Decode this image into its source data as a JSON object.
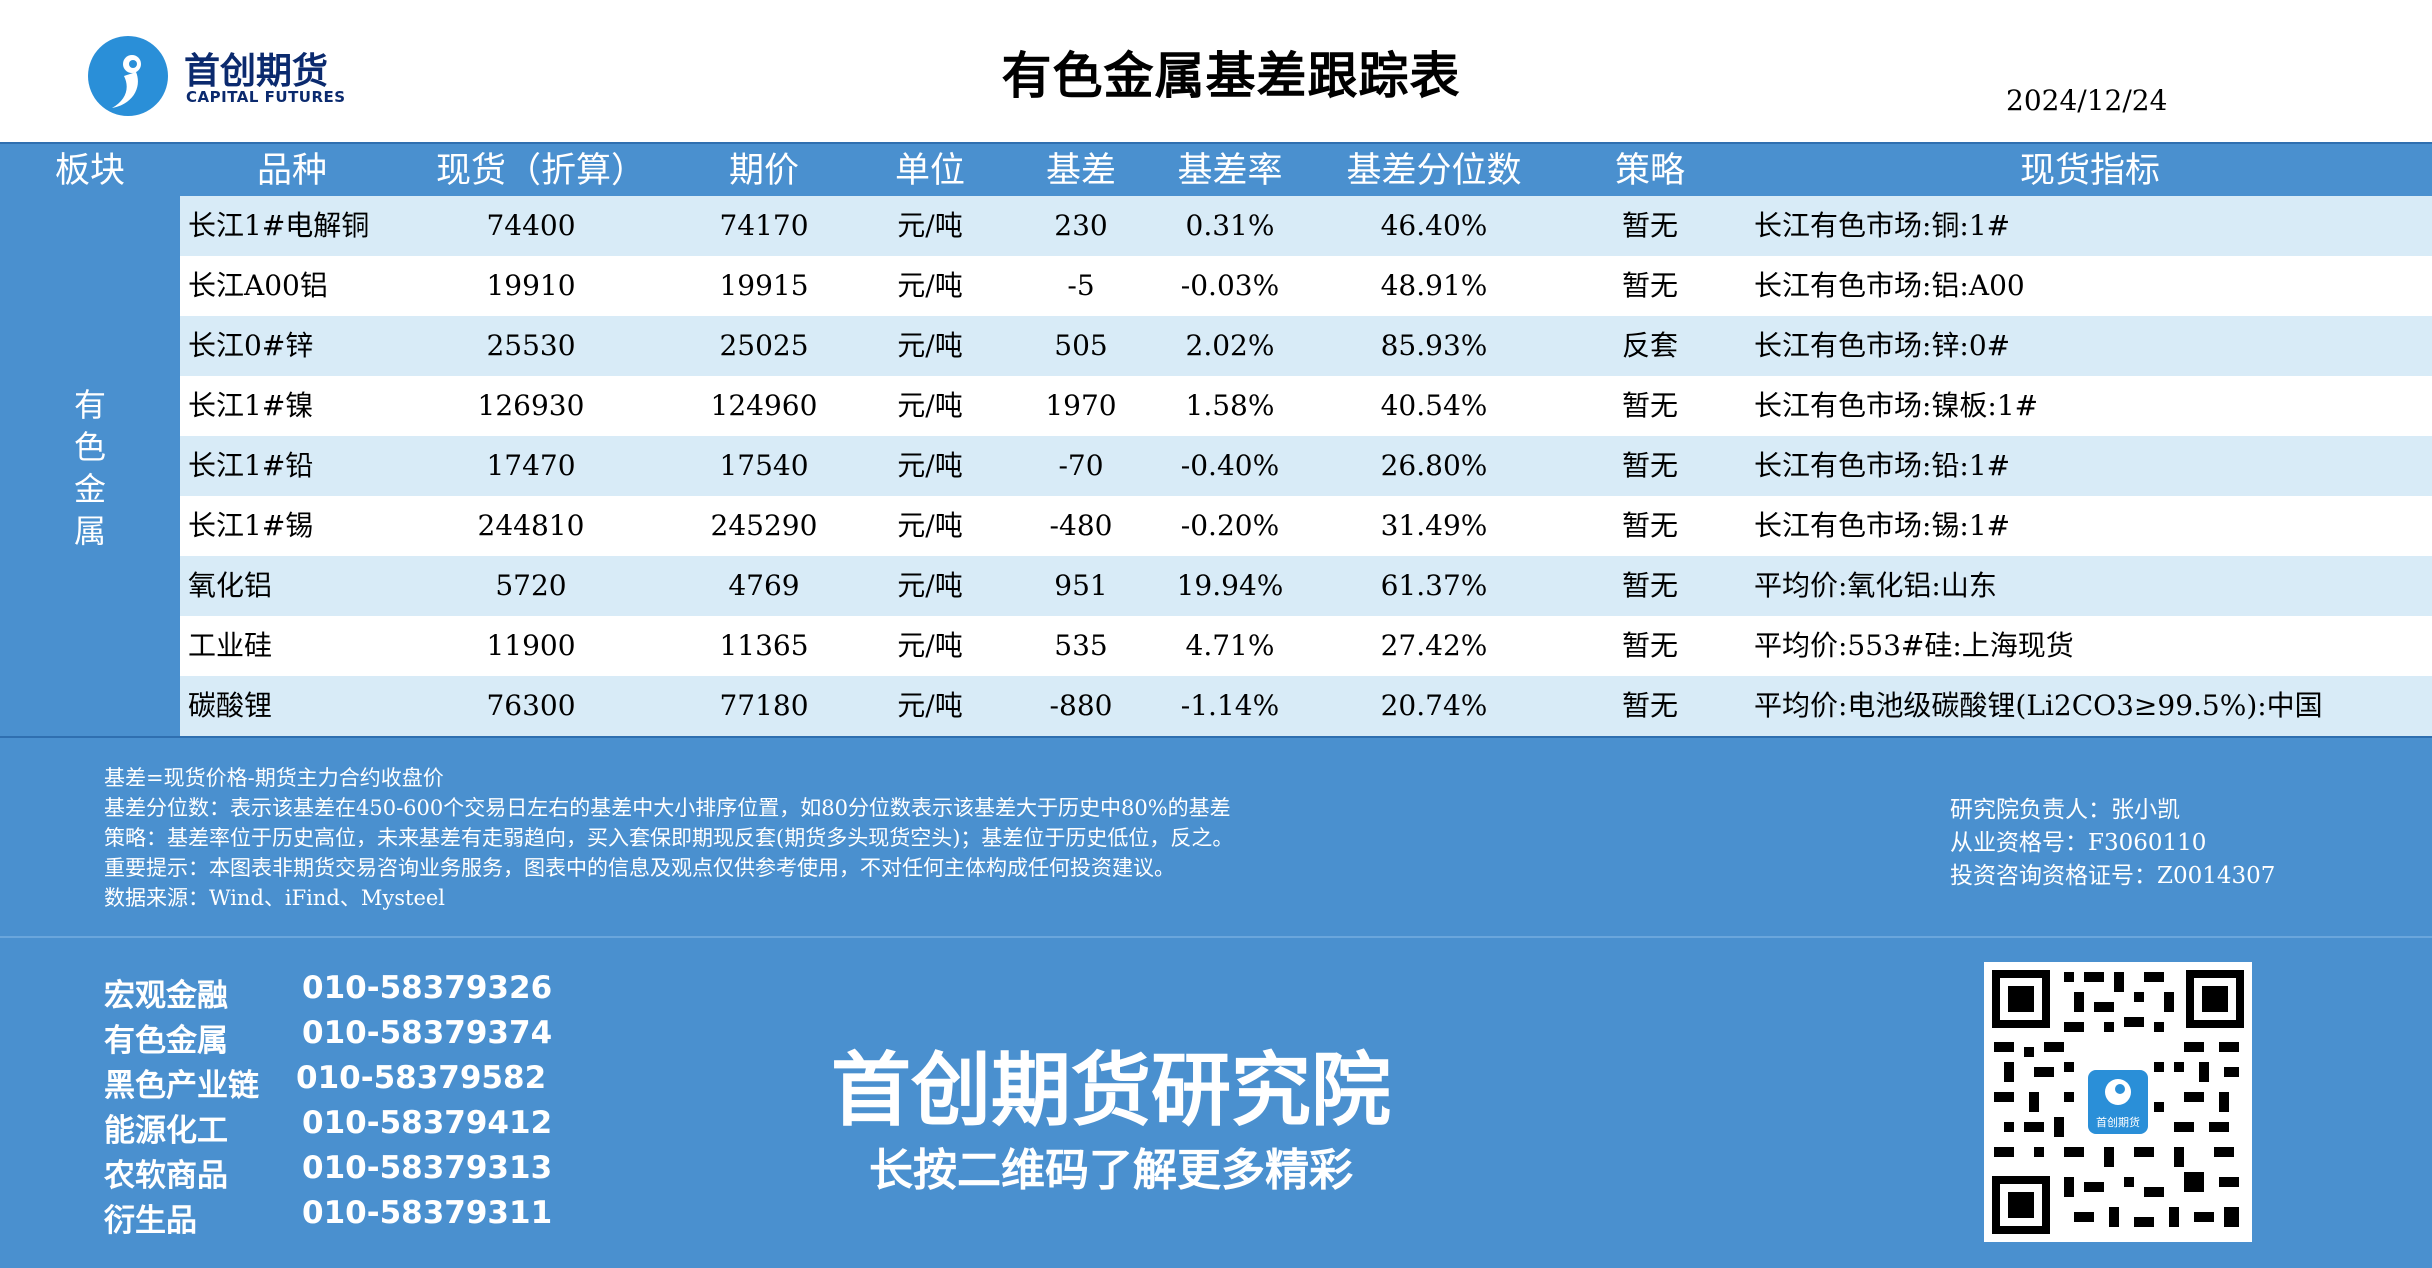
{
  "header": {
    "logo_cn": "首创期货",
    "logo_en": "CAPITAL FUTURES",
    "title": "有色金属基差跟踪表",
    "date": "2024/12/24"
  },
  "table": {
    "headers": [
      "板块",
      "品种",
      "现货（折算）",
      "期价",
      "单位",
      "基差",
      "基差率",
      "基差分位数",
      "策略",
      "现货指标"
    ],
    "section_label": "有\n色\n金\n属",
    "rows": [
      {
        "name": "长江1#电解铜",
        "spot": "74400",
        "futures": "74170",
        "unit": "元/吨",
        "basis": "230",
        "basis_rate": "0.31%",
        "percentile": "46.40%",
        "strategy": "暂无",
        "indicator": "长江有色市场:铜:1#"
      },
      {
        "name": "长江A00铝",
        "spot": "19910",
        "futures": "19915",
        "unit": "元/吨",
        "basis": "-5",
        "basis_rate": "-0.03%",
        "percentile": "48.91%",
        "strategy": "暂无",
        "indicator": "长江有色市场:铝:A00"
      },
      {
        "name": "长江0#锌",
        "spot": "25530",
        "futures": "25025",
        "unit": "元/吨",
        "basis": "505",
        "basis_rate": "2.02%",
        "percentile": "85.93%",
        "strategy": "反套",
        "indicator": "长江有色市场:锌:0#"
      },
      {
        "name": "长江1#镍",
        "spot": "126930",
        "futures": "124960",
        "unit": "元/吨",
        "basis": "1970",
        "basis_rate": "1.58%",
        "percentile": "40.54%",
        "strategy": "暂无",
        "indicator": "长江有色市场:镍板:1#"
      },
      {
        "name": "长江1#铅",
        "spot": "17470",
        "futures": "17540",
        "unit": "元/吨",
        "basis": "-70",
        "basis_rate": "-0.40%",
        "percentile": "26.80%",
        "strategy": "暂无",
        "indicator": "长江有色市场:铅:1#"
      },
      {
        "name": "长江1#锡",
        "spot": "244810",
        "futures": "245290",
        "unit": "元/吨",
        "basis": "-480",
        "basis_rate": "-0.20%",
        "percentile": "31.49%",
        "strategy": "暂无",
        "indicator": "长江有色市场:锡:1#"
      },
      {
        "name": "氧化铝",
        "spot": "5720",
        "futures": "4769",
        "unit": "元/吨",
        "basis": "951",
        "basis_rate": "19.94%",
        "percentile": "61.37%",
        "strategy": "暂无",
        "indicator": "平均价:氧化铝:山东"
      },
      {
        "name": "工业硅",
        "spot": "11900",
        "futures": "11365",
        "unit": "元/吨",
        "basis": "535",
        "basis_rate": "4.71%",
        "percentile": "27.42%",
        "strategy": "暂无",
        "indicator": "平均价:553#硅:上海现货"
      },
      {
        "name": "碳酸锂",
        "spot": "76300",
        "futures": "77180",
        "unit": "元/吨",
        "basis": "-880",
        "basis_rate": "-1.14%",
        "percentile": "20.74%",
        "strategy": "暂无",
        "indicator": "平均价:电池级碳酸锂(Li2CO3≥99.5%):中国"
      }
    ]
  },
  "notes": {
    "lines": [
      "基差=现货价格-期货主力合约收盘价",
      "基差分位数：表示该基差在450-600个交易日左右的基差中大小排序位置，如80分位数表示该基差大于历史中80%的基差",
      "策略：基差率位于历史高位，未来基差有走弱趋向，买入套保即期现反套(期货多头现货空头)；基差位于历史低位，反之。",
      "重要提示：本图表非期货交易咨询业务服务，图表中的信息及观点仅供参考使用，不对任何主体构成任何投资建议。",
      "数据来源：Wind、iFind、Mysteel"
    ],
    "right": [
      "研究院负责人：张小凯",
      "从业资格号：F3060110",
      "投资咨询资格证号：Z0014307"
    ]
  },
  "footer": {
    "contacts": [
      {
        "label": "宏观金融",
        "phone": "010-58379326"
      },
      {
        "label": "有色金属",
        "phone": "010-58379374"
      },
      {
        "label": "黑色产业链",
        "phone": "010-58379582"
      },
      {
        "label": "能源化工",
        "phone": "010-58379412"
      },
      {
        "label": "农软商品",
        "phone": "010-58379313"
      },
      {
        "label": "衍生品",
        "phone": "010-58379311"
      }
    ],
    "institute": "首创期货研究院",
    "cta": "长按二维码了解更多精彩",
    "qr_center_text": "首创期货"
  },
  "colors": {
    "header_blue": "#4a90cf",
    "row_alt": "#d8ebf7",
    "logo_navy": "#0b2a6e"
  }
}
